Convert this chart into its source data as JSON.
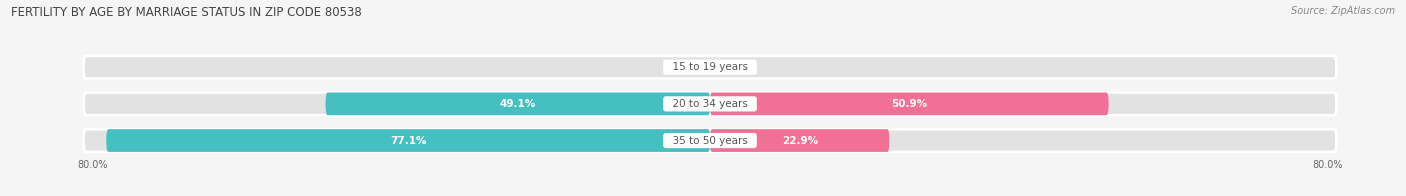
{
  "title": "FERTILITY BY AGE BY MARRIAGE STATUS IN ZIP CODE 80538",
  "source": "Source: ZipAtlas.com",
  "categories": [
    "15 to 19 years",
    "20 to 34 years",
    "35 to 50 years"
  ],
  "married_values": [
    0.0,
    49.1,
    77.1
  ],
  "unmarried_values": [
    0.0,
    50.9,
    22.9
  ],
  "x_min": -80.0,
  "x_max": 80.0,
  "x_left_label": "80.0%",
  "x_right_label": "80.0%",
  "bar_height": 0.62,
  "married_color": "#45BFBF",
  "unmarried_color": "#F07098",
  "bg_color": "#F5F5F5",
  "bar_bg_color": "#E2E2E2",
  "cat_label_color": "#555555",
  "title_color": "#444444",
  "source_color": "#888888",
  "value_label_color_inside": "white",
  "value_label_color_outside": "#666666",
  "title_fontsize": 8.5,
  "label_fontsize": 7.5,
  "cat_fontsize": 7.5,
  "tick_fontsize": 7.0,
  "source_fontsize": 7.0
}
